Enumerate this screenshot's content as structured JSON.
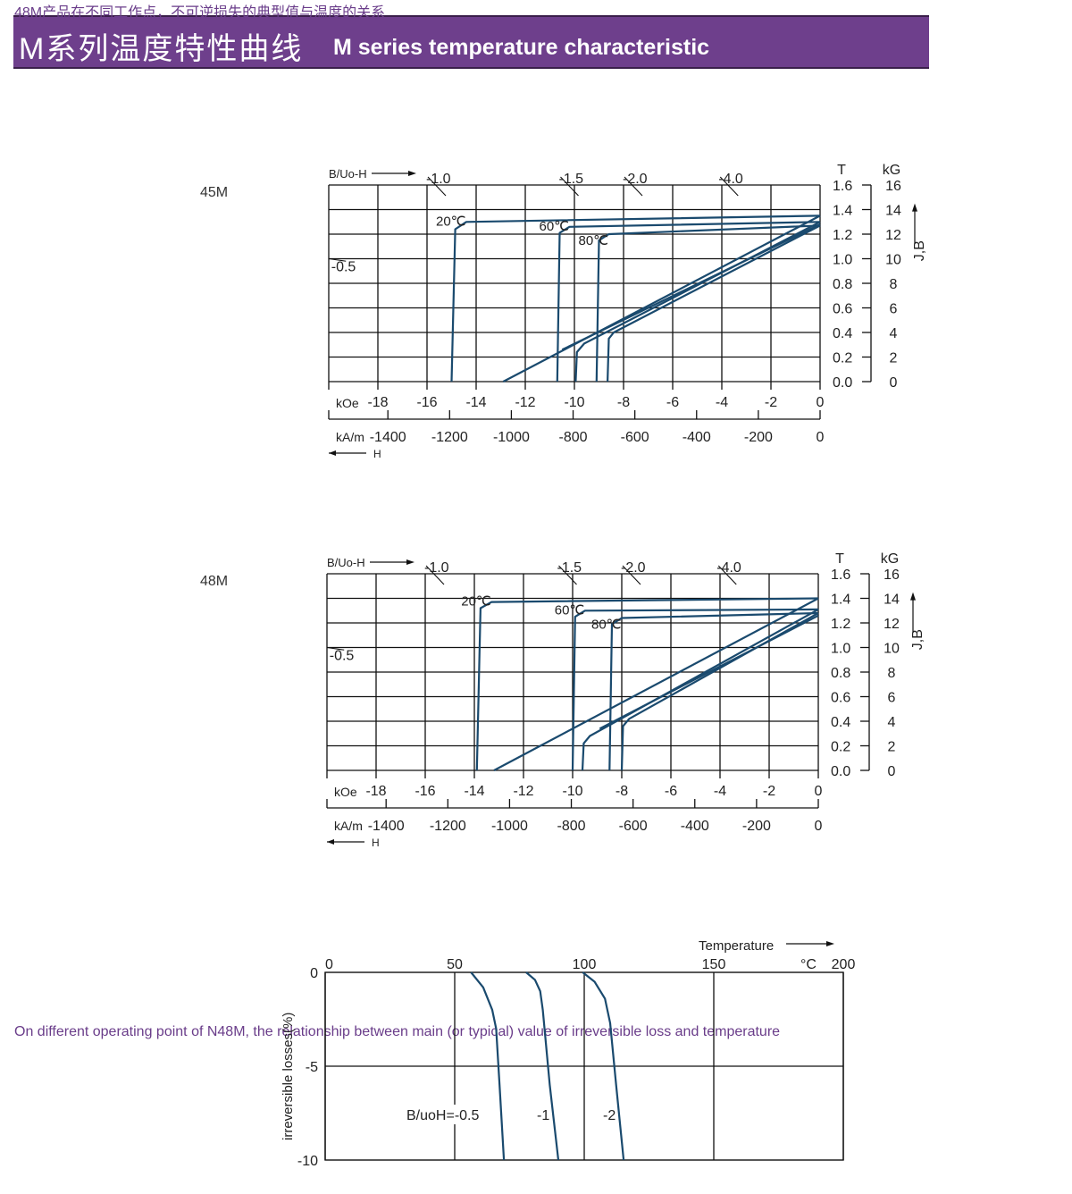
{
  "header": {
    "title_cn": "M系列温度特性曲线",
    "title_en": "M  series temperature characteristic",
    "color": "#6e3f8c"
  },
  "curve_color": "#1a4a6e",
  "chart_data": [
    {
      "type": "line",
      "label": "45M",
      "x_unit": "kOe",
      "x_unit2": "kA/m",
      "y_unit": "T",
      "y_unit2": "kG",
      "y_axis_label": "J,B",
      "load_line_label": "B/Uo-H",
      "h_label": "H",
      "xlim": [
        -20,
        0
      ],
      "ylim": [
        0,
        1.6
      ],
      "grid": true,
      "x_ticks": [
        -18,
        -16,
        -14,
        -12,
        -10,
        -8,
        -6,
        -4,
        -2,
        0
      ],
      "x2_ticks": [
        -1400,
        -1200,
        -1000,
        -800,
        -600,
        -400,
        -200,
        0
      ],
      "y_ticks": [
        0.0,
        0.2,
        0.4,
        0.6,
        0.8,
        1.0,
        1.2,
        1.4,
        1.6
      ],
      "y2_ticks": [
        0,
        2,
        4,
        6,
        8,
        10,
        12,
        14,
        16
      ],
      "load_lines": [
        {
          "label": "-1.0",
          "h": -15.6
        },
        {
          "label": "-1.5",
          "h": -10.2
        },
        {
          "label": "-2.0",
          "h": -7.6
        },
        {
          "label": "-4.0",
          "h": -3.7
        },
        {
          "label": "-0.5",
          "h": -19.5
        }
      ],
      "series": [
        {
          "name": "20℃",
          "kind": "J",
          "points": [
            [
              -15.0,
              0
            ],
            [
              -14.85,
              1.24
            ],
            [
              -14.4,
              1.3
            ],
            [
              0,
              1.35
            ]
          ]
        },
        {
          "name": "60℃",
          "kind": "J",
          "points": [
            [
              -10.7,
              0
            ],
            [
              -10.6,
              1.21
            ],
            [
              -10.2,
              1.26
            ],
            [
              0,
              1.3
            ]
          ]
        },
        {
          "name": "80℃",
          "kind": "J",
          "points": [
            [
              -9.1,
              0
            ],
            [
              -9.0,
              1.15
            ],
            [
              -8.6,
              1.2
            ],
            [
              0,
              1.27
            ]
          ]
        },
        {
          "kind": "B",
          "points": [
            [
              -12.9,
              0
            ],
            [
              0,
              1.35
            ]
          ]
        },
        {
          "kind": "B",
          "points": [
            [
              -9.95,
              0
            ],
            [
              -9.9,
              0.24
            ],
            [
              -9.6,
              0.31
            ],
            [
              0,
              1.3
            ]
          ]
        },
        {
          "kind": "B",
          "points": [
            [
              -8.65,
              0
            ],
            [
              -8.6,
              0.35
            ],
            [
              -8.4,
              0.4
            ],
            [
              0,
              1.27
            ]
          ]
        },
        {
          "kind": "B",
          "points": [
            [
              -10.5,
              0.26
            ],
            [
              0,
              1.28
            ]
          ]
        }
      ]
    },
    {
      "type": "line",
      "label": "48M",
      "x_unit": "kOe",
      "x_unit2": "kA/m",
      "y_unit": "T",
      "y_unit2": "kG",
      "y_axis_label": "J,B",
      "load_line_label": "B/Uo-H",
      "h_label": "H",
      "xlim": [
        -20,
        0
      ],
      "ylim": [
        0,
        1.6
      ],
      "grid": true,
      "x_ticks": [
        -18,
        -16,
        -14,
        -12,
        -10,
        -8,
        -6,
        -4,
        -2,
        0
      ],
      "x2_ticks": [
        -1400,
        -1200,
        -1000,
        -800,
        -600,
        -400,
        -200,
        0
      ],
      "y_ticks": [
        0.0,
        0.2,
        0.4,
        0.6,
        0.8,
        1.0,
        1.2,
        1.4,
        1.6
      ],
      "y2_ticks": [
        0,
        2,
        4,
        6,
        8,
        10,
        12,
        14,
        16
      ],
      "load_lines": [
        {
          "label": "-1.0",
          "h": -15.6
        },
        {
          "label": "-1.5",
          "h": -10.2
        },
        {
          "label": "-2.0",
          "h": -7.6
        },
        {
          "label": "-4.0",
          "h": -3.7
        },
        {
          "label": "-0.5",
          "h": -19.5
        }
      ],
      "series": [
        {
          "name": "20℃",
          "kind": "J",
          "points": [
            [
              -13.9,
              0
            ],
            [
              -13.75,
              1.32
            ],
            [
              -13.3,
              1.37
            ],
            [
              0,
              1.4
            ]
          ]
        },
        {
          "name": "60℃",
          "kind": "J",
          "points": [
            [
              -10.0,
              0
            ],
            [
              -9.9,
              1.25
            ],
            [
              -9.5,
              1.3
            ],
            [
              0,
              1.31
            ]
          ]
        },
        {
          "name": "80℃",
          "kind": "J",
          "points": [
            [
              -8.5,
              0
            ],
            [
              -8.4,
              1.19
            ],
            [
              -8.0,
              1.24
            ],
            [
              0,
              1.28
            ]
          ]
        },
        {
          "kind": "B",
          "points": [
            [
              -13.2,
              0
            ],
            [
              0,
              1.4
            ]
          ]
        },
        {
          "kind": "B",
          "points": [
            [
              -9.6,
              0
            ],
            [
              -9.55,
              0.22
            ],
            [
              -9.3,
              0.28
            ],
            [
              0,
              1.31
            ]
          ]
        },
        {
          "kind": "B",
          "points": [
            [
              -8.0,
              0
            ],
            [
              -7.95,
              0.36
            ],
            [
              -7.7,
              0.42
            ],
            [
              0,
              1.28
            ]
          ]
        },
        {
          "kind": "B",
          "points": [
            [
              -8.9,
              0.34
            ],
            [
              0,
              1.26
            ]
          ]
        }
      ]
    },
    {
      "type": "line",
      "xlabel": "Temperature",
      "x_unit": "°C",
      "ylabel": "irreversible  losses(%)",
      "xlim": [
        0,
        200
      ],
      "ylim": [
        -10,
        0
      ],
      "grid": true,
      "x_ticks": [
        0,
        50,
        100,
        150,
        200
      ],
      "y_ticks": [
        0,
        -5,
        -10
      ],
      "series": [
        {
          "name": "B/uoH=-0.5",
          "points": [
            [
              56.3,
              0
            ],
            [
              61,
              -0.8
            ],
            [
              64.5,
              -2.0
            ],
            [
              66,
              -3.0
            ],
            [
              67.3,
              -6
            ],
            [
              69,
              -10
            ]
          ]
        },
        {
          "name": "-1",
          "points": [
            [
              77.6,
              0
            ],
            [
              81,
              -0.4
            ],
            [
              83,
              -1.0
            ],
            [
              84,
              -2.0
            ],
            [
              86.7,
              -6
            ],
            [
              90,
              -10
            ]
          ]
        },
        {
          "name": "-2",
          "points": [
            [
              99.4,
              0
            ],
            [
              104,
              -0.5
            ],
            [
              108,
              -1.4
            ],
            [
              110,
              -2.7
            ],
            [
              112.3,
              -6
            ],
            [
              115.2,
              -10
            ]
          ]
        }
      ]
    }
  ],
  "note": {
    "cn": "48M产品在不同工作点，不可逆损失的典型值与温度的关系",
    "en": "On different operating point of N48M, the relationship between main (or typical) value of irreversible loss and temperature"
  }
}
